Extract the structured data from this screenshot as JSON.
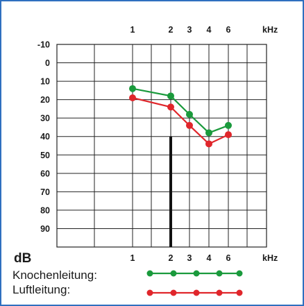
{
  "chart_data": {
    "type": "line",
    "xlabel": "kHz",
    "ylabel": "dB",
    "x_ticks": [
      "1",
      "2",
      "3",
      "4",
      "6"
    ],
    "x_unit": "kHz",
    "y_ticks": [
      "-10",
      "0",
      "10",
      "20",
      "30",
      "40",
      "50",
      "60",
      "70",
      "80",
      "90"
    ],
    "y_unit": "dB",
    "ylim": [
      -10,
      100
    ],
    "y_reversed": true,
    "grid": true,
    "series": [
      {
        "name": "Knochenleitung:",
        "color": "#1a9a3c",
        "x": [
          1,
          2,
          3,
          4,
          6
        ],
        "values": [
          14,
          18,
          28,
          38,
          34
        ]
      },
      {
        "name": "Luftleitung:",
        "color": "#e0262b",
        "x": [
          1,
          2,
          3,
          4,
          6
        ],
        "values": [
          19,
          24,
          34,
          44,
          39
        ]
      }
    ],
    "marker": {
      "x": 2,
      "from": 40,
      "to": 100,
      "color": "#111111"
    }
  },
  "colors": {
    "frame": "#2f6fbf",
    "grid": "#222222"
  }
}
